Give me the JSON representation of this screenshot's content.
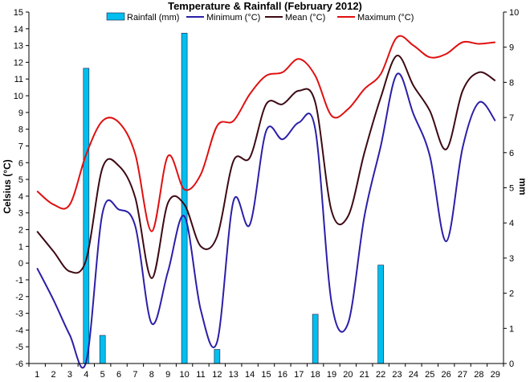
{
  "chart_data": {
    "type": "bar+line",
    "title": "Temperature & Rainfall (February 2012)",
    "ylabel_left": "Celsius (°C)",
    "ylabel_right": "mm",
    "xlabel": "",
    "x": [
      1,
      2,
      3,
      4,
      5,
      6,
      7,
      8,
      9,
      10,
      11,
      12,
      13,
      14,
      15,
      16,
      17,
      18,
      19,
      20,
      21,
      22,
      23,
      24,
      25,
      26,
      27,
      28,
      29
    ],
    "ylim_left": [
      -6,
      15
    ],
    "ylim_right": [
      0,
      10
    ],
    "legend_position": "top",
    "grid": false,
    "series": [
      {
        "name": "Rainfall (mm)",
        "type": "bar",
        "axis": "right",
        "color": "#00BFEF",
        "values": [
          0,
          0,
          0,
          8.4,
          0.8,
          0,
          0,
          0,
          0,
          9.4,
          0,
          0.4,
          0,
          0,
          0,
          0,
          0,
          1.4,
          0,
          0,
          0,
          2.8,
          0,
          0,
          0,
          0,
          0,
          0,
          0
        ]
      },
      {
        "name": "Minimum (°C)",
        "type": "line",
        "axis": "left",
        "color": "#2B1FA8",
        "values": [
          -0.3,
          -2.2,
          -4.3,
          -5.9,
          3.0,
          3.2,
          2.2,
          -3.6,
          -0.5,
          2.8,
          -2.8,
          -4.7,
          3.7,
          2.3,
          7.9,
          7.4,
          8.4,
          8.0,
          -2.4,
          -3.6,
          2.8,
          7.0,
          11.3,
          8.9,
          6.4,
          1.3,
          6.9,
          9.6,
          8.5
        ]
      },
      {
        "name": "Mean (°C)",
        "type": "line",
        "axis": "left",
        "color": "#3D0A14",
        "values": [
          1.9,
          0.7,
          -0.5,
          0.2,
          5.7,
          5.8,
          3.9,
          -0.9,
          3.6,
          3.5,
          1.0,
          1.6,
          6.1,
          6.3,
          9.5,
          9.5,
          10.3,
          9.6,
          3.1,
          2.8,
          6.6,
          9.9,
          12.4,
          10.6,
          9.1,
          6.8,
          10.3,
          11.4,
          10.9
        ]
      },
      {
        "name": "Maximum (°C)",
        "type": "line",
        "axis": "left",
        "color": "#E01010",
        "values": [
          4.3,
          3.5,
          3.5,
          6.5,
          8.5,
          8.4,
          6.5,
          1.9,
          6.4,
          4.4,
          5.3,
          8.2,
          8.5,
          10.1,
          11.2,
          11.4,
          12.2,
          11.2,
          8.8,
          9.2,
          10.4,
          11.3,
          13.5,
          13.0,
          12.3,
          12.5,
          13.2,
          13.1,
          13.2
        ]
      }
    ]
  }
}
